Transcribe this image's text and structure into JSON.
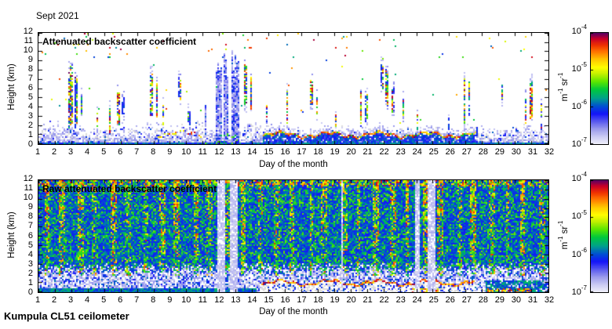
{
  "title": "Sept 2021",
  "footer": "Kumpula CL51 ceilometer",
  "axis": {
    "x_label": "Day of the month",
    "y_label": "Height (km)",
    "x_ticks": [
      1,
      2,
      3,
      4,
      5,
      6,
      7,
      8,
      9,
      10,
      11,
      12,
      13,
      14,
      15,
      16,
      17,
      18,
      19,
      20,
      21,
      22,
      23,
      24,
      25,
      26,
      27,
      28,
      29,
      30,
      31,
      32
    ],
    "y_ticks": [
      0,
      1,
      2,
      3,
      4,
      5,
      6,
      7,
      8,
      9,
      10,
      11,
      12
    ]
  },
  "panels": [
    {
      "label": "Attenuated backscatter coefficient"
    },
    {
      "label": "Raw attenuated backscatter coefficient"
    }
  ],
  "colorbar": {
    "ticks": [
      {
        "base": "10",
        "sup": "-4"
      },
      {
        "base": "10",
        "sup": "-5"
      },
      {
        "base": "10",
        "sup": "-6"
      },
      {
        "base": "10",
        "sup": "-7"
      }
    ],
    "unit_segments": [
      {
        "text": "m"
      },
      {
        "sup": "-1"
      },
      {
        "text": " sr"
      },
      {
        "sup": "-1"
      }
    ],
    "stops": [
      [
        0.0,
        "#EEEEFA"
      ],
      [
        0.06,
        "#CDCDF4"
      ],
      [
        0.13,
        "#9D9DEC"
      ],
      [
        0.2,
        "#5A5AEE"
      ],
      [
        0.27,
        "#1414FA"
      ],
      [
        0.34,
        "#0050D2"
      ],
      [
        0.41,
        "#00A08C"
      ],
      [
        0.49,
        "#00C83C"
      ],
      [
        0.56,
        "#5AE600"
      ],
      [
        0.63,
        "#C0F000"
      ],
      [
        0.69,
        "#FFFF00"
      ],
      [
        0.76,
        "#FFC800"
      ],
      [
        0.83,
        "#FF7800"
      ],
      [
        0.89,
        "#F03200"
      ],
      [
        0.95,
        "#C80028"
      ],
      [
        1.0,
        "#5A0064"
      ]
    ],
    "weak_echo_gray": "#DCDCDC"
  },
  "chart_data": {
    "type": "heatmap",
    "title": "Sept 2021",
    "instrument": "Kumpula CL51 ceilometer",
    "x": {
      "label": "Day of the month",
      "range": [
        1,
        32
      ]
    },
    "y": {
      "label": "Height (km)",
      "range": [
        0,
        12
      ]
    },
    "color_scale": {
      "type": "log",
      "min": "1e-7",
      "max": "1e-4",
      "units": "m-1 sr-1",
      "tick_labels": [
        "10^-4",
        "10^-5",
        "10^-6",
        "10^-7"
      ]
    },
    "panels": [
      {
        "name": "Attenuated backscatter coefficient",
        "background": "white (below detection)",
        "boundary_layer_top_km": [
          1.9,
          2.1,
          2.3,
          1.7,
          1.6,
          1.9,
          1.8,
          2.1,
          1.7,
          1.9,
          2.0,
          1.3,
          1.6,
          2.3,
          1.9,
          1.7,
          1.6,
          1.9,
          1.8,
          1.7,
          1.9,
          2.1,
          1.6,
          1.3,
          1.7,
          1.6,
          1.9,
          1.7,
          1.6,
          1.8,
          1.9
        ],
        "ground_return_km": 0.25,
        "rain_columns": [
          {
            "day": 11.15,
            "width": 0.12,
            "top_km": 5.0
          },
          {
            "day": 11.95,
            "width": 0.38,
            "top_km": 8.8
          },
          {
            "day": 12.4,
            "width": 0.3,
            "top_km": 9.2
          },
          {
            "day": 12.95,
            "width": 0.5,
            "top_km": 9.5
          }
        ],
        "elevated_layer_segments": [
          {
            "day_start": 14.6,
            "day_end": 27.6,
            "height_km": 1.0,
            "strength": 1.0
          },
          {
            "day_start": 8.2,
            "day_end": 10.9,
            "height_km": 1.1,
            "strength": 0.5
          }
        ],
        "cloud_streaks": [
          {
            "day": 2.95,
            "width": 0.3,
            "h0": 2.0,
            "h1": 8.4
          },
          {
            "day": 3.3,
            "width": 0.15,
            "h0": 1.5,
            "h1": 6.8
          },
          {
            "day": 3.6,
            "width": 0.1,
            "h0": 3.0,
            "h1": 5.0
          },
          {
            "day": 4.6,
            "width": 0.1,
            "h0": 2.0,
            "h1": 3.5
          },
          {
            "day": 5.35,
            "width": 0.12,
            "h0": 1.5,
            "h1": 4.2
          },
          {
            "day": 5.85,
            "width": 0.18,
            "h0": 2.0,
            "h1": 5.6
          },
          {
            "day": 6.15,
            "width": 0.1,
            "h0": 3.0,
            "h1": 5.0
          },
          {
            "day": 7.9,
            "width": 0.22,
            "h0": 3.0,
            "h1": 7.6
          },
          {
            "day": 8.2,
            "width": 0.18,
            "h0": 2.5,
            "h1": 6.6
          },
          {
            "day": 8.55,
            "width": 0.12,
            "h0": 2.0,
            "h1": 4.2
          },
          {
            "day": 9.6,
            "width": 0.14,
            "h0": 5.0,
            "h1": 7.2
          },
          {
            "day": 10.15,
            "width": 0.12,
            "h0": 2.0,
            "h1": 3.6
          },
          {
            "day": 13.6,
            "width": 0.16,
            "h0": 4.0,
            "h1": 8.4
          },
          {
            "day": 13.9,
            "width": 0.14,
            "h0": 3.5,
            "h1": 7.0
          },
          {
            "day": 14.9,
            "width": 0.1,
            "h0": 2.5,
            "h1": 4.0
          },
          {
            "day": 16.1,
            "width": 0.14,
            "h0": 2.5,
            "h1": 6.0
          },
          {
            "day": 17.6,
            "width": 0.14,
            "h0": 4.0,
            "h1": 6.6
          },
          {
            "day": 17.95,
            "width": 0.1,
            "h0": 3.0,
            "h1": 5.0
          },
          {
            "day": 19.1,
            "width": 0.08,
            "h0": 2.0,
            "h1": 3.5
          },
          {
            "day": 20.6,
            "width": 0.16,
            "h0": 2.0,
            "h1": 6.0
          },
          {
            "day": 20.95,
            "width": 0.14,
            "h0": 2.5,
            "h1": 5.6
          },
          {
            "day": 21.9,
            "width": 0.12,
            "h0": 6.0,
            "h1": 8.6
          },
          {
            "day": 22.2,
            "width": 0.2,
            "h0": 4.0,
            "h1": 7.6,
            "tilt": -1.5
          },
          {
            "day": 22.55,
            "width": 0.14,
            "h0": 3.5,
            "h1": 6.0
          },
          {
            "day": 23.2,
            "width": 0.12,
            "h0": 3.0,
            "h1": 5.0
          },
          {
            "day": 24.0,
            "width": 0.1,
            "h0": 1.5,
            "h1": 3.2
          },
          {
            "day": 25.9,
            "width": 0.1,
            "h0": 1.5,
            "h1": 3.0
          },
          {
            "day": 26.9,
            "width": 0.16,
            "h0": 2.0,
            "h1": 7.0
          },
          {
            "day": 27.2,
            "width": 0.14,
            "h0": 3.0,
            "h1": 6.6
          },
          {
            "day": 29.2,
            "width": 0.12,
            "h0": 4.5,
            "h1": 6.2
          },
          {
            "day": 30.6,
            "width": 0.14,
            "h0": 2.0,
            "h1": 5.0
          },
          {
            "day": 30.95,
            "width": 0.16,
            "h0": 2.5,
            "h1": 6.6
          },
          {
            "day": 31.6,
            "width": 0.12,
            "h0": 1.5,
            "h1": 4.5
          }
        ]
      },
      {
        "name": "Raw attenuated backscatter coefficient",
        "background": "broadband noise speckle over full height range",
        "diurnal_noise_stripes": {
          "period_days": 1,
          "center_offset": 0.5,
          "width_days": 0.32
        },
        "whiteout_columns": [
          {
            "day": 12.1,
            "width": 0.5
          },
          {
            "day": 12.9,
            "width": 0.45
          },
          {
            "day": 19.45,
            "width": 0.07
          },
          {
            "day": 24.05,
            "width": 0.35
          },
          {
            "day": 24.9,
            "width": 0.4
          }
        ],
        "elevated_layer_segments": [
          {
            "day_start": 14.5,
            "day_end": 27.5,
            "height_km": 1.0,
            "strength": 1.0
          }
        ],
        "bottom_hotspot_segments": [
          {
            "day_start": 23.7,
            "day_end": 25.3
          },
          {
            "day_start": 28.3,
            "day_end": 31.0
          }
        ],
        "dense_ground_day_range": [
          1,
          14.3
        ]
      }
    ]
  }
}
